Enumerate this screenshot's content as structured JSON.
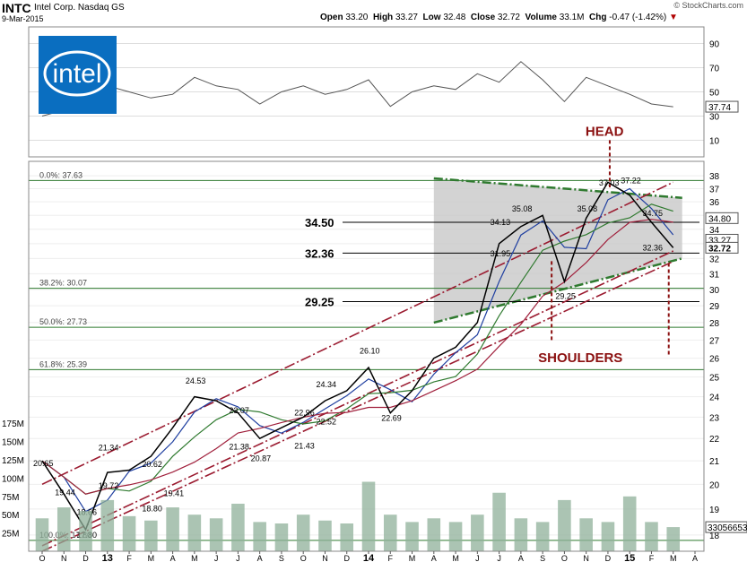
{
  "header": {
    "symbol": "INTC",
    "company": "Intel Corp.",
    "exchange": "Nasdaq GS",
    "date": "9-Mar-2015",
    "credit": "© StockCharts.com",
    "open_label": "Open",
    "open": "33.20",
    "high_label": "High",
    "high": "33.27",
    "low_label": "Low",
    "low": "32.48",
    "close_label": "Close",
    "close": "32.72",
    "volume_label": "Volume",
    "volume": "33.1M",
    "chg_label": "Chg",
    "chg": "-0.47 (-1.42%)"
  },
  "logo": {
    "text": "intel",
    "bg_color": "#0a6ec0"
  },
  "colors": {
    "price": "#000000",
    "ma_blue": "#1f3fa0",
    "ma_green": "#2f7a2f",
    "ma_red": "#a0203c",
    "channel": "#9b1b30",
    "fib": "#2f7a2f",
    "annotation": "#8b1010",
    "volume": "#8fb09a",
    "shade": "#c8c8c8"
  },
  "chart_data": [
    {
      "type": "line",
      "name": "RSI",
      "yticks": [
        10,
        30,
        50,
        70,
        90
      ],
      "ylim": [
        0,
        100
      ],
      "last_label": "37.74",
      "x": [
        "2012-10",
        "2012-11",
        "2012-12",
        "2013-01",
        "2013-02",
        "2013-03",
        "2013-04",
        "2013-05",
        "2013-06",
        "2013-07",
        "2013-08",
        "2013-09",
        "2013-10",
        "2013-11",
        "2013-12",
        "2014-01",
        "2014-02",
        "2014-03",
        "2014-04",
        "2014-05",
        "2014-06",
        "2014-07",
        "2014-08",
        "2014-09",
        "2014-10",
        "2014-11",
        "2014-12",
        "2015-01",
        "2015-02",
        "2015-03"
      ],
      "values": [
        30,
        35,
        45,
        55,
        50,
        45,
        48,
        62,
        55,
        52,
        40,
        50,
        55,
        48,
        52,
        60,
        38,
        50,
        55,
        52,
        65,
        58,
        75,
        60,
        42,
        62,
        55,
        48,
        40,
        37.74
      ]
    },
    {
      "type": "line",
      "name": "Price",
      "y_scale": "log",
      "yticks": [
        18,
        19,
        20,
        21,
        22,
        23,
        24,
        25,
        26,
        27,
        28,
        29,
        30,
        31,
        32,
        33,
        34,
        35,
        36,
        37,
        38
      ],
      "ylim": [
        17.4,
        38.8
      ],
      "xtick_labels": [
        "O",
        "N",
        "D",
        "13",
        "F",
        "M",
        "A",
        "M",
        "J",
        "J",
        "A",
        "S",
        "O",
        "N",
        "D",
        "14",
        "F",
        "M",
        "A",
        "M",
        "J",
        "J",
        "A",
        "S",
        "O",
        "N",
        "D",
        "15",
        "F",
        "M",
        "A"
      ],
      "x": [
        "2012-10",
        "2012-11",
        "2012-12",
        "2013-01",
        "2013-02",
        "2013-03",
        "2013-04",
        "2013-05",
        "2013-06",
        "2013-07",
        "2013-08",
        "2013-09",
        "2013-10",
        "2013-11",
        "2013-12",
        "2014-01",
        "2014-02",
        "2014-03",
        "2014-04",
        "2014-05",
        "2014-06",
        "2014-07",
        "2014-08",
        "2014-09",
        "2014-10",
        "2014-11",
        "2014-12",
        "2015-01",
        "2015-02",
        "2015-03"
      ],
      "values": [
        21.0,
        19.6,
        18.2,
        20.5,
        20.6,
        21.2,
        22.5,
        24.0,
        23.8,
        23.2,
        22.0,
        22.5,
        23.0,
        23.8,
        24.3,
        25.5,
        23.2,
        24.3,
        26.0,
        26.6,
        28.0,
        33.0,
        34.2,
        35.0,
        30.5,
        34.8,
        37.5,
        36.5,
        34.5,
        32.72
      ],
      "last_label": "32.72",
      "other_labels": [
        "33.27",
        "34.80"
      ],
      "data_labels": [
        {
          "text": "20.65",
          "x": "2012-10",
          "y": 20.65
        },
        {
          "text": "19.44",
          "x": "2012-11",
          "y": 19.44
        },
        {
          "text": "17.80",
          "x": "2012-12",
          "y": 17.8
        },
        {
          "text": "18.66",
          "x": "2012-12",
          "y": 18.66
        },
        {
          "text": "19.72",
          "x": "2013-01",
          "y": 19.72
        },
        {
          "text": "21.34",
          "x": "2013-01",
          "y": 21.34
        },
        {
          "text": "18.80",
          "x": "2013-03",
          "y": 18.8
        },
        {
          "text": "20.62",
          "x": "2013-03",
          "y": 20.62
        },
        {
          "text": "19.41",
          "x": "2013-04",
          "y": 19.41
        },
        {
          "text": "24.53",
          "x": "2013-05",
          "y": 24.53
        },
        {
          "text": "23.07",
          "x": "2013-07",
          "y": 23.07
        },
        {
          "text": "21.38",
          "x": "2013-07",
          "y": 21.38
        },
        {
          "text": "20.87",
          "x": "2013-08",
          "y": 20.87
        },
        {
          "text": "22.96",
          "x": "2013-10",
          "y": 22.96
        },
        {
          "text": "21.43",
          "x": "2013-10",
          "y": 21.43
        },
        {
          "text": "24.34",
          "x": "2013-11",
          "y": 24.34
        },
        {
          "text": "22.52",
          "x": "2013-11",
          "y": 22.52
        },
        {
          "text": "26.10",
          "x": "2014-01",
          "y": 26.1
        },
        {
          "text": "22.69",
          "x": "2014-02",
          "y": 22.69
        },
        {
          "text": "31.95",
          "x": "2014-07",
          "y": 31.95
        },
        {
          "text": "34.13",
          "x": "2014-07",
          "y": 34.13
        },
        {
          "text": "35.08",
          "x": "2014-08",
          "y": 35.08
        },
        {
          "text": "29.25",
          "x": "2014-10",
          "y": 29.25
        },
        {
          "text": "35.08",
          "x": "2014-11",
          "y": 35.08
        },
        {
          "text": "37.03",
          "x": "2014-12",
          "y": 37.03
        },
        {
          "text": "37.22",
          "x": "2015-01",
          "y": 37.22
        },
        {
          "text": "34.75",
          "x": "2015-02",
          "y": 34.75
        },
        {
          "text": "32.36",
          "x": "2015-02",
          "y": 32.36
        }
      ],
      "fib_levels": [
        {
          "label": "0.0%: 37.63",
          "value": 37.63
        },
        {
          "label": "38.2%: 30.07",
          "value": 30.07
        },
        {
          "label": "50.0%: 27.73",
          "value": 27.73
        },
        {
          "label": "61.8%: 25.39",
          "value": 25.39
        },
        {
          "label": "100.0%: 17.80",
          "value": 17.8
        }
      ],
      "level_lines": [
        {
          "label": "34.50",
          "value": 34.5
        },
        {
          "label": "32.36",
          "value": 32.36
        },
        {
          "label": "29.25",
          "value": 29.25
        }
      ],
      "annotations": {
        "head": "HEAD",
        "shoulders": "SHOULDERS"
      }
    },
    {
      "type": "bar",
      "name": "Volume",
      "yticks": [
        "25M",
        "50M",
        "75M",
        "100M",
        "125M",
        "150M",
        "175M"
      ],
      "ytick_values": [
        25,
        50,
        75,
        100,
        125,
        150,
        175
      ],
      "ylim": [
        0,
        190
      ],
      "last_label": "33056653",
      "x": [
        "2012-10",
        "2012-11",
        "2012-12",
        "2013-01",
        "2013-02",
        "2013-03",
        "2013-04",
        "2013-05",
        "2013-06",
        "2013-07",
        "2013-08",
        "2013-09",
        "2013-10",
        "2013-11",
        "2013-12",
        "2014-01",
        "2014-02",
        "2014-03",
        "2014-04",
        "2014-05",
        "2014-06",
        "2014-07",
        "2014-08",
        "2014-09",
        "2014-10",
        "2014-11",
        "2014-12",
        "2015-01",
        "2015-02",
        "2015-03"
      ],
      "values": [
        45,
        60,
        55,
        70,
        48,
        42,
        60,
        50,
        45,
        65,
        40,
        38,
        50,
        42,
        38,
        95,
        50,
        40,
        45,
        40,
        50,
        80,
        45,
        40,
        70,
        45,
        40,
        75,
        40,
        33
      ]
    }
  ]
}
